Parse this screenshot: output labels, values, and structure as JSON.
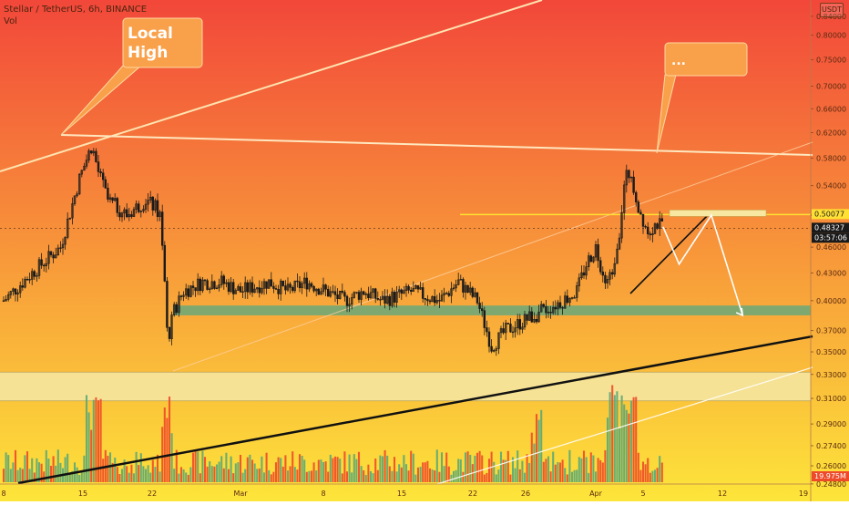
{
  "header": {
    "symbol": "Stellar / TetherUS, 6h, BINANCE",
    "volume_label": "Vol",
    "currency_badge": "USDT"
  },
  "annotations": {
    "local_high": "Local\nHigh",
    "ellipsis": "..."
  },
  "price_labels": {
    "level": "0.50077",
    "last": "0.48327",
    "countdown": "03:57:06",
    "volume": "19.975M"
  },
  "colors": {
    "bg_top": "#f2473a",
    "bg_bottom": "#fde53a",
    "candle": "#1a1a1a",
    "vol_green": "#5aa878",
    "vol_red": "#ee4a2a",
    "zone_green": "#6aa87a",
    "zone_light": "#f5e7a6",
    "level_line": "#ffe033",
    "callout": "#f9a04a"
  },
  "chart_data": {
    "type": "candlestick",
    "y_axis": {
      "ticks": [
        "0.84000",
        "0.80000",
        "0.75000",
        "0.70000",
        "0.66000",
        "0.62000",
        "0.58000",
        "0.54000",
        "0.50000",
        "0.46000",
        "0.43000",
        "0.40000",
        "0.37000",
        "0.35000",
        "0.33000",
        "0.31000",
        "0.29000",
        "0.27400",
        "0.26000",
        "0.24800"
      ],
      "scale": "log",
      "range": [
        0.245,
        0.86
      ]
    },
    "x_axis": {
      "ticks": [
        "8",
        "15",
        "22",
        "Mar",
        "8",
        "15",
        "22",
        "26",
        "Apr",
        "5",
        "12",
        "19"
      ]
    },
    "price_path": [
      [
        0,
        0.4
      ],
      [
        3,
        0.43
      ],
      [
        6,
        0.46
      ],
      [
        8,
        0.55
      ],
      [
        9.3,
        0.6
      ],
      [
        10,
        0.56
      ],
      [
        11,
        0.52
      ],
      [
        12,
        0.51
      ],
      [
        13,
        0.5
      ],
      [
        14,
        0.51
      ],
      [
        15,
        0.52
      ],
      [
        16,
        0.51
      ],
      [
        16.5,
        0.5
      ],
      [
        17,
        0.42
      ],
      [
        17.3,
        0.36
      ],
      [
        18,
        0.39
      ],
      [
        19,
        0.41
      ],
      [
        21,
        0.42
      ],
      [
        23,
        0.42
      ],
      [
        25,
        0.41
      ],
      [
        28,
        0.42
      ],
      [
        30,
        0.41
      ],
      [
        32,
        0.42
      ],
      [
        34,
        0.41
      ],
      [
        36,
        0.4
      ],
      [
        38,
        0.41
      ],
      [
        40,
        0.4
      ],
      [
        43,
        0.41
      ],
      [
        46,
        0.4
      ],
      [
        48,
        0.42
      ],
      [
        50,
        0.4
      ],
      [
        51.5,
        0.355
      ],
      [
        53,
        0.37
      ],
      [
        55,
        0.38
      ],
      [
        57,
        0.39
      ],
      [
        59,
        0.4
      ],
      [
        60.5,
        0.41
      ],
      [
        61.5,
        0.44
      ],
      [
        62.5,
        0.46
      ],
      [
        63,
        0.44
      ],
      [
        63.7,
        0.42
      ],
      [
        64.2,
        0.43
      ],
      [
        65,
        0.48
      ],
      [
        65.6,
        0.55
      ],
      [
        66.2,
        0.56
      ],
      [
        67,
        0.51
      ],
      [
        68,
        0.48
      ],
      [
        69,
        0.49
      ],
      [
        69.6,
        0.483
      ]
    ],
    "levels": {
      "resistance": 0.50077,
      "last_price": 0.48327,
      "support_zone": [
        0.385,
        0.395
      ],
      "lower_zone": [
        0.308,
        0.332
      ]
    },
    "projection": [
      [
        69.6,
        0.485
      ],
      [
        71.3,
        0.44
      ],
      [
        74.7,
        0.5
      ],
      [
        78,
        0.385
      ]
    ],
    "volume_max": "19.975M"
  }
}
